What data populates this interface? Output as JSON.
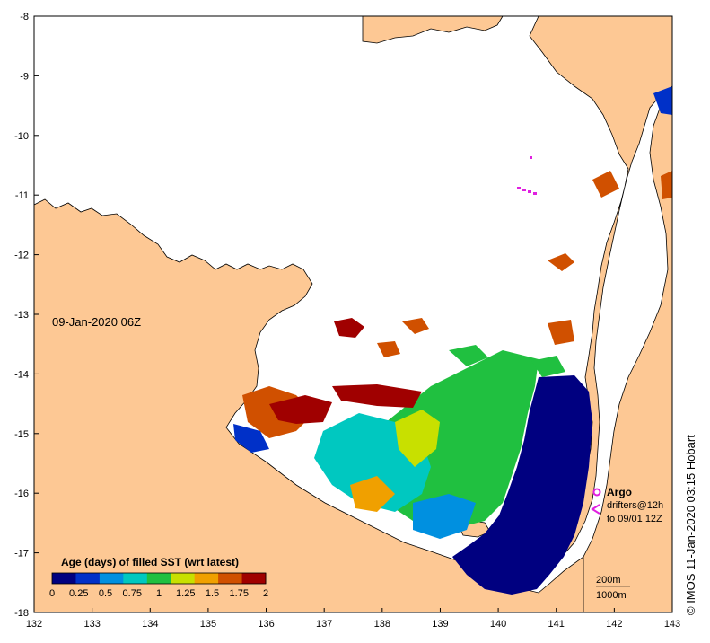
{
  "map": {
    "date_label": "09-Jan-2020 06Z",
    "credit": "© IMOS 11-Jan-2020 03:15 Hobart",
    "x_ticks": [
      "132",
      "133",
      "134",
      "135",
      "136",
      "137",
      "138",
      "139",
      "140",
      "141",
      "142",
      "143"
    ],
    "y_ticks": [
      "-8",
      "-9",
      "-10",
      "-11",
      "-12",
      "-13",
      "-14",
      "-15",
      "-16",
      "-17",
      "-18"
    ],
    "lon_range": [
      132,
      143
    ],
    "lat_range": [
      -18,
      -8
    ]
  },
  "colorbar": {
    "title": "Age (days) of filled SST (wrt latest)",
    "tick_labels": [
      "0",
      "0.25",
      "0.5",
      "0.75",
      "1",
      "1.25",
      "1.5",
      "1.75",
      "2"
    ],
    "colors": [
      "#000080",
      "#0030c8",
      "#0090e0",
      "#00c8c0",
      "#20c040",
      "#c8e000",
      "#f0a000",
      "#d05000",
      "#a00000"
    ]
  },
  "legend": {
    "argo_label": "Argo",
    "drifters_label": "drifters@12h",
    "drifters_sub": "to 09/01 12Z",
    "argo_color": "#e020e0"
  },
  "scale": {
    "isobath_200": "200m",
    "isobath_1000": "1000m"
  }
}
